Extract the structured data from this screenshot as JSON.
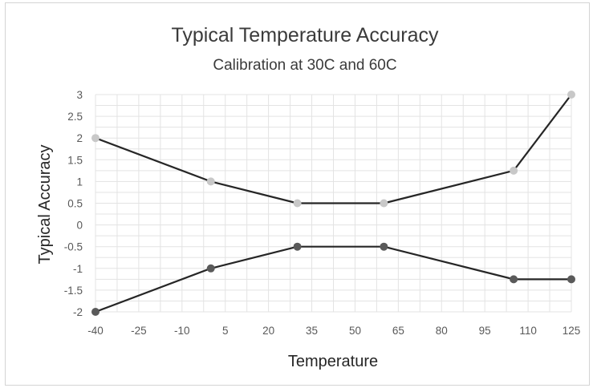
{
  "chart_data": {
    "type": "line",
    "title": "Typical Temperature Accuracy",
    "subtitle": "Calibration at 30C and 60C",
    "xlabel": "Temperature",
    "ylabel": "Typical Accuracy",
    "x_ticks": [
      "-40",
      "-25",
      "-10",
      "5",
      "20",
      "35",
      "50",
      "65",
      "80",
      "95",
      "110",
      "125"
    ],
    "y_ticks": [
      "3",
      "2.5",
      "2",
      "1.5",
      "1",
      "0.5",
      "0",
      "-0.5",
      "-1",
      "-1.5",
      "-2"
    ],
    "xlim": [
      -40,
      125
    ],
    "ylim": [
      -2,
      3
    ],
    "grid": true,
    "series": [
      {
        "x": [
          -40,
          0,
          30,
          60,
          105,
          125
        ],
        "values": [
          2,
          1,
          0.5,
          0.5,
          1.25,
          3
        ],
        "line_color": "#262626",
        "marker_color": "#c8c8c8"
      },
      {
        "x": [
          -40,
          0,
          30,
          60,
          105,
          125
        ],
        "values": [
          -2,
          -1,
          -0.5,
          -0.5,
          -1.25,
          -1.25
        ],
        "line_color": "#262626",
        "marker_color": "#5a5a5a"
      }
    ]
  }
}
